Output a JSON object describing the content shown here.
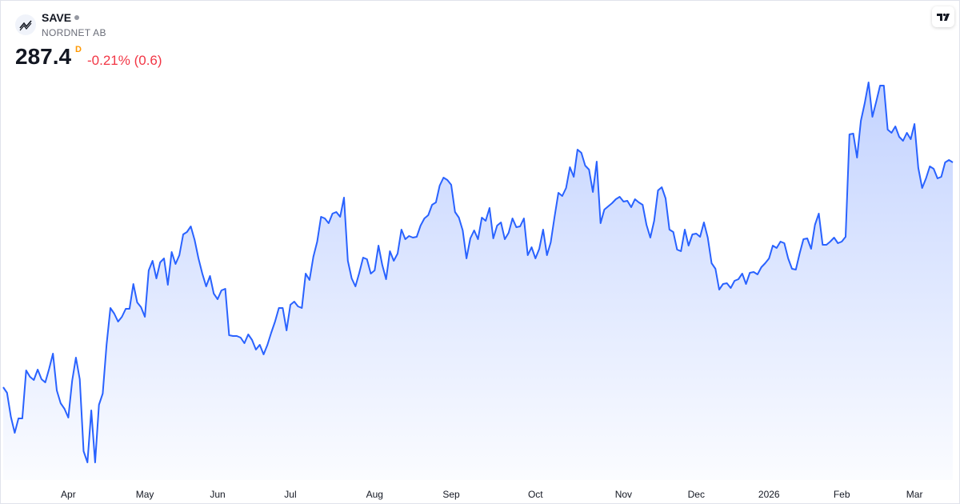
{
  "header": {
    "symbol": "SAVE",
    "exchange": "NORDNET AB",
    "price": "287.4",
    "interval": "D",
    "change": "-0.21% (0.6)"
  },
  "chart_data": {
    "type": "area",
    "color": "#2962ff",
    "values": [
      231.2,
      229.8,
      223.8,
      219.8,
      223.4,
      223.4,
      235.4,
      233.8,
      233,
      235.6,
      233.2,
      232.4,
      235.8,
      239.6,
      230.4,
      227.2,
      225.8,
      223.6,
      232.8,
      238.6,
      233.2,
      215.2,
      212.4,
      225.4,
      212.4,
      226.8,
      229.6,
      241.8,
      251,
      249.6,
      247.6,
      248.8,
      250.8,
      250.8,
      257,
      252.4,
      251.2,
      248.8,
      260.4,
      262.8,
      258.4,
      262.4,
      263.4,
      256.8,
      265,
      262,
      264.2,
      269.4,
      270,
      271.4,
      268,
      263.4,
      259.6,
      256.4,
      259,
      254.6,
      253.2,
      255.4,
      255.8,
      244.2,
      244,
      244,
      243.6,
      242.2,
      244.4,
      243,
      240.6,
      241.8,
      239.4,
      241.8,
      244.8,
      247.6,
      251,
      251,
      245.4,
      251.8,
      252.6,
      251.4,
      251,
      259.6,
      258,
      263.8,
      267.6,
      273.8,
      273.4,
      272.2,
      274.6,
      275,
      273.8,
      278.6,
      262.8,
      258.4,
      256.4,
      259.8,
      263.6,
      263.2,
      259.6,
      260.4,
      266.6,
      261.8,
      258.2,
      265.2,
      262.8,
      264.6,
      270.6,
      268.2,
      269,
      268.6,
      268.8,
      271.6,
      273.4,
      274.2,
      276.8,
      277.4,
      281.6,
      283.6,
      283,
      281.8,
      275,
      273.6,
      270.4,
      263.4,
      268.4,
      270.4,
      268.2,
      273.6,
      272.8,
      276,
      268.4,
      271.6,
      272.4,
      268.2,
      269.8,
      273.4,
      271.2,
      271.4,
      273.4,
      264.2,
      266.2,
      263.4,
      265.8,
      270.6,
      264.2,
      267.4,
      273.8,
      279.8,
      279,
      281,
      286.2,
      283.8,
      290.6,
      289.8,
      286.6,
      285.6,
      280,
      287.6,
      272.2,
      275.6,
      276.4,
      277.2,
      278.2,
      278.8,
      277.6,
      277.8,
      276.2,
      278.2,
      277.4,
      276.8,
      271.8,
      268.6,
      272.8,
      280.4,
      281.2,
      278.4,
      270.6,
      270,
      265.6,
      265.2,
      270.6,
      266.6,
      269.4,
      269.6,
      268.8,
      272.4,
      268.6,
      262.2,
      260.8,
      255.6,
      257,
      257.2,
      256,
      257.8,
      258.2,
      259.6,
      257,
      259.8,
      260,
      259.4,
      261.2,
      262.2,
      263.4,
      266.6,
      266,
      267.6,
      267.2,
      263.4,
      260.8,
      260.6,
      264.6,
      268.2,
      268.4,
      265.8,
      271.8,
      274.6,
      266.8,
      266.8,
      267.6,
      268.6,
      267.2,
      267.6,
      268.8,
      294.4,
      294.6,
      288.6,
      297.8,
      302.2,
      307.4,
      298.8,
      302.6,
      306.6,
      306.6,
      295.6,
      294.8,
      296.4,
      293.8,
      292.8,
      294.8,
      293.2,
      297,
      286,
      281,
      283.4,
      286.4,
      285.8,
      283.4,
      283.8,
      287.4,
      288,
      287.4
    ],
    "ylim": [
      208,
      322
    ],
    "xticks": [
      {
        "value": 17,
        "label": "Apr"
      },
      {
        "value": 37,
        "label": "May"
      },
      {
        "value": 56,
        "label": "Jun"
      },
      {
        "value": 75,
        "label": "Jul"
      },
      {
        "value": 97,
        "label": "Aug"
      },
      {
        "value": 117,
        "label": "Sep"
      },
      {
        "value": 139,
        "label": "Oct"
      },
      {
        "value": 162,
        "label": "Nov"
      },
      {
        "value": 181,
        "label": "Dec"
      },
      {
        "value": 200,
        "label": "2026"
      },
      {
        "value": 219,
        "label": "Feb"
      },
      {
        "value": 238,
        "label": "Mar"
      }
    ]
  }
}
